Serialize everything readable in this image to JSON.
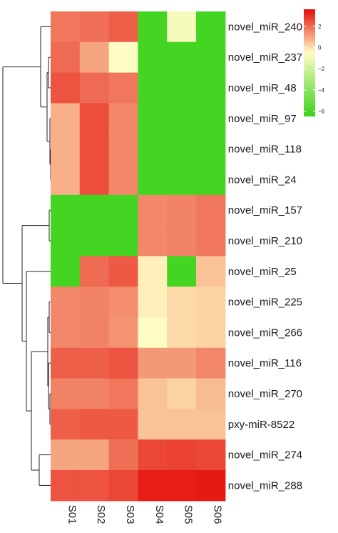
{
  "chart_data": {
    "type": "heatmap",
    "title": "",
    "columns": [
      "S01",
      "S02",
      "S03",
      "S04",
      "S05",
      "S06"
    ],
    "rows": [
      "novel_miR_240",
      "novel_miR_237",
      "novel_miR_48",
      "novel_miR_97",
      "novel_miR_118",
      "novel_miR_24",
      "novel_miR_157",
      "novel_miR_210",
      "novel_miR_25",
      "novel_miR_225",
      "novel_miR_266",
      "novel_miR_116",
      "novel_miR_270",
      "pxy-miR-8522",
      "novel_miR_274",
      "novel_miR_288"
    ],
    "values": [
      [
        1.8,
        1.9,
        2.2,
        -6.2,
        -0.8,
        -6.2
      ],
      [
        2.0,
        1.0,
        -0.5,
        -6.2,
        -6.2,
        -6.2
      ],
      [
        2.4,
        2.0,
        1.8,
        -6.2,
        -6.2,
        -6.2
      ],
      [
        0.8,
        2.5,
        1.5,
        -6.2,
        -6.2,
        -6.2
      ],
      [
        0.8,
        2.5,
        1.5,
        -6.2,
        -6.2,
        -6.2
      ],
      [
        0.8,
        2.5,
        1.5,
        -6.2,
        -6.2,
        -6.2
      ],
      [
        -6.2,
        -6.2,
        -6.2,
        1.5,
        1.6,
        1.8
      ],
      [
        -6.2,
        -6.2,
        -6.2,
        1.5,
        1.6,
        1.8
      ],
      [
        -6.2,
        2.0,
        2.3,
        -0.3,
        -6.2,
        0.5
      ],
      [
        1.5,
        1.6,
        1.4,
        -0.3,
        0.1,
        0.2
      ],
      [
        1.5,
        1.6,
        1.3,
        -0.5,
        0.1,
        0.2
      ],
      [
        2.2,
        2.2,
        2.4,
        1.2,
        1.2,
        1.5
      ],
      [
        1.6,
        1.6,
        1.8,
        0.5,
        0.2,
        0.6
      ],
      [
        2.2,
        2.3,
        2.3,
        0.5,
        0.5,
        0.5
      ],
      [
        1.0,
        1.0,
        1.9,
        2.6,
        2.7,
        2.6
      ],
      [
        2.4,
        2.4,
        2.6,
        3.3,
        3.3,
        3.4
      ]
    ],
    "color_scale": {
      "min": -6.5,
      "max": 3.6,
      "stops": [
        {
          "value": -6.5,
          "color": "#3ad31a"
        },
        {
          "value": -0.5,
          "color": "#fffcc4"
        },
        {
          "value": 3.6,
          "color": "#e50d0a"
        }
      ]
    },
    "legend": {
      "placement": "top-right",
      "ticks": [
        {
          "value": 2,
          "label": "2"
        },
        {
          "value": 0,
          "label": "0"
        },
        {
          "value": -2,
          "label": "−2"
        },
        {
          "value": -4,
          "label": "−4"
        },
        {
          "value": -6,
          "label": "−6"
        }
      ]
    },
    "row_dendrogram": true,
    "grid": false
  }
}
